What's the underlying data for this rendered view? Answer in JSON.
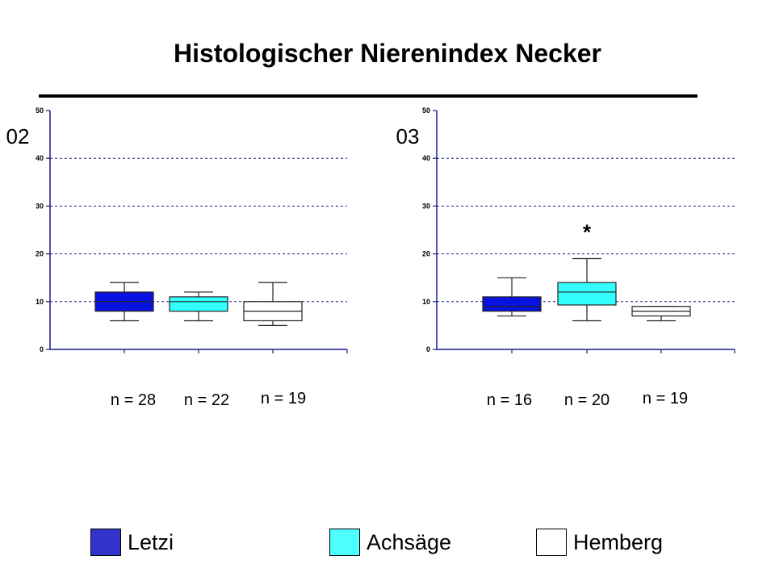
{
  "title": "Histologischer Nierenindex Necker",
  "colors": {
    "Letzi": "#0a12e0",
    "Achsäge": "#33ffff",
    "Hemberg": "#ffffff",
    "grid": "#1a1a8a",
    "axis": "#1a1a8a"
  },
  "legend": [
    {
      "label": "Letzi",
      "color": "#3333cc"
    },
    {
      "label": "Achsäge",
      "color": "#4dffff"
    },
    {
      "label": "Hemberg",
      "color": "#ffffff"
    }
  ],
  "chart_data": [
    {
      "type": "boxplot",
      "panel_label": "02",
      "y_ticks": [
        0,
        10,
        20,
        30,
        40,
        50
      ],
      "ylim": [
        0,
        50
      ],
      "grid": true,
      "annotation": "",
      "groups": [
        {
          "name": "Letzi",
          "n_label": "n = 28",
          "whisker_low": 6,
          "q1": 8,
          "median": 10,
          "q3": 12,
          "whisker_high": 14
        },
        {
          "name": "Achsäge",
          "n_label": "n = 22",
          "whisker_low": 6,
          "q1": 8,
          "median": 10,
          "q3": 11,
          "whisker_high": 12
        },
        {
          "name": "Hemberg",
          "n_label": "n = 19",
          "whisker_low": 5,
          "q1": 6,
          "median": 8,
          "q3": 10,
          "whisker_high": 14
        }
      ]
    },
    {
      "type": "boxplot",
      "panel_label": "03",
      "y_ticks": [
        0,
        10,
        20,
        30,
        40,
        50
      ],
      "ylim": [
        0,
        50
      ],
      "grid": true,
      "annotation": "*",
      "annotation_group": 1,
      "groups": [
        {
          "name": "Letzi",
          "n_label": "n = 16",
          "whisker_low": 7,
          "q1": 8,
          "median": 9,
          "q3": 11,
          "whisker_high": 15
        },
        {
          "name": "Achsäge",
          "n_label": "n = 20",
          "whisker_low": 6,
          "q1": 9.3,
          "median": 12,
          "q3": 14,
          "whisker_high": 19
        },
        {
          "name": "Hemberg",
          "n_label": "n = 19",
          "whisker_low": 6,
          "q1": 7,
          "median": 8,
          "q3": 9,
          "whisker_high": 9
        }
      ]
    }
  ]
}
